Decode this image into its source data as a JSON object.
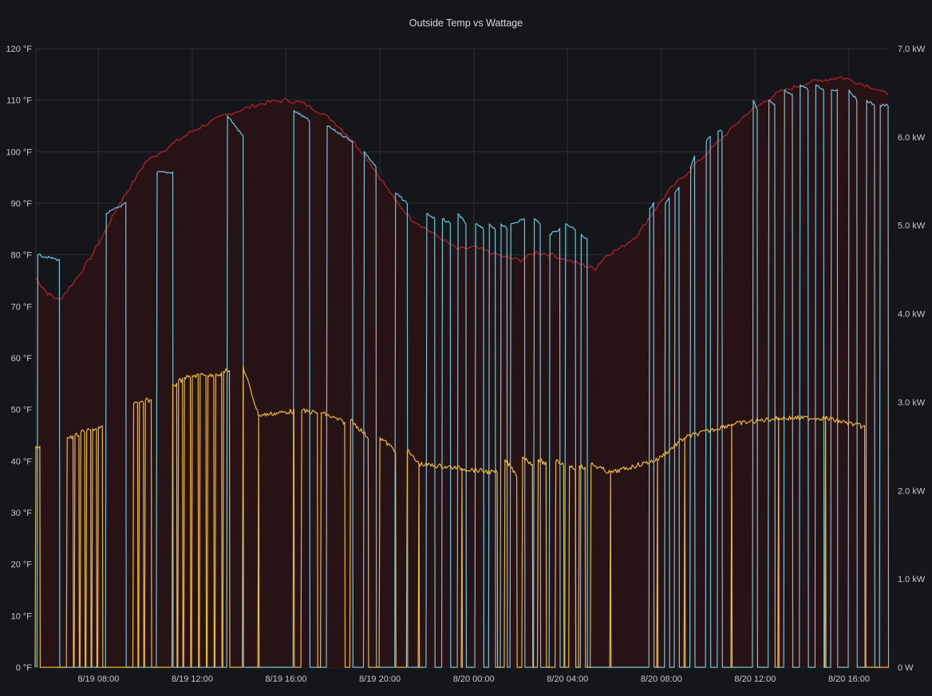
{
  "panel": {
    "title": "Outside Temp vs Wattage"
  },
  "chart_data": {
    "type": "line",
    "title": "Outside Temp vs Wattage",
    "x_ticks": [
      "8/19 08:00",
      "8/19 12:00",
      "8/19 16:00",
      "8/19 20:00",
      "8/20 00:00",
      "8/20 04:00",
      "8/20 08:00",
      "8/20 12:00",
      "8/20 16:00"
    ],
    "x_range": [
      "8/19 05:20",
      "8/20 17:40"
    ],
    "y_left": {
      "unit": "°F",
      "ylim": [
        0,
        120
      ],
      "ticks": [
        "0 °F",
        "10 °F",
        "20 °F",
        "30 °F",
        "40 °F",
        "50 °F",
        "60 °F",
        "70 °F",
        "80 °F",
        "90 °F",
        "100 °F",
        "110 °F",
        "120 °F"
      ]
    },
    "y_right": {
      "unit": "kW",
      "ylim": [
        0,
        7
      ],
      "ticks": [
        "0 W",
        "1.0 kW",
        "2.0 kW",
        "3.0 kW",
        "4.0 kW",
        "5.0 kW",
        "6.0 kW",
        "7.0 kW"
      ]
    },
    "grid": true,
    "colors": {
      "temperature": "#a8202e",
      "temperature_fill": "#2a1215",
      "power_high": "#6ec6dc",
      "power_low": "#eab839"
    },
    "temperature_series": {
      "axis": "left",
      "points": [
        [
          "8/19 05:20",
          75.5
        ],
        [
          "8/19 05:50",
          72.5
        ],
        [
          "8/19 06:20",
          71.2
        ],
        [
          "8/19 07:00",
          75
        ],
        [
          "8/19 07:40",
          79.5
        ],
        [
          "8/19 08:20",
          85
        ],
        [
          "8/19 08:50",
          89.5
        ],
        [
          "8/19 09:20",
          93
        ],
        [
          "8/19 10:00",
          98
        ],
        [
          "8/19 10:40",
          100
        ],
        [
          "8/19 11:20",
          102
        ],
        [
          "8/19 12:00",
          104
        ],
        [
          "8/19 12:40",
          105.5
        ],
        [
          "8/19 13:20",
          107
        ],
        [
          "8/19 14:00",
          108
        ],
        [
          "8/19 14:40",
          109
        ],
        [
          "8/19 15:20",
          109.7
        ],
        [
          "8/19 16:00",
          110
        ],
        [
          "8/19 16:40",
          109.5
        ],
        [
          "8/19 17:20",
          108
        ],
        [
          "8/19 18:00",
          106
        ],
        [
          "8/19 18:40",
          103
        ],
        [
          "8/19 19:20",
          99.5
        ],
        [
          "8/19 20:00",
          95
        ],
        [
          "8/19 20:40",
          90.5
        ],
        [
          "8/19 21:20",
          87
        ],
        [
          "8/19 22:00",
          85
        ],
        [
          "8/19 22:40",
          83
        ],
        [
          "8/19 23:20",
          81
        ],
        [
          "8/20 00:00",
          81.5
        ],
        [
          "8/20 00:40",
          80.5
        ],
        [
          "8/20 01:20",
          79.5
        ],
        [
          "8/20 02:00",
          79
        ],
        [
          "8/20 02:40",
          80.5
        ],
        [
          "8/20 03:20",
          80
        ],
        [
          "8/20 04:00",
          79
        ],
        [
          "8/20 04:40",
          78
        ],
        [
          "8/20 05:10",
          77.3
        ],
        [
          "8/20 05:40",
          80
        ],
        [
          "8/20 06:20",
          81.5
        ],
        [
          "8/20 07:00",
          84
        ],
        [
          "8/20 07:40",
          88.5
        ],
        [
          "8/20 08:20",
          92.5
        ],
        [
          "8/20 09:00",
          95.5
        ],
        [
          "8/20 09:40",
          98.5
        ],
        [
          "8/20 10:20",
          101.5
        ],
        [
          "8/20 11:00",
          104.5
        ],
        [
          "8/20 11:40",
          107.5
        ],
        [
          "8/20 12:20",
          109.5
        ],
        [
          "8/20 13:00",
          111.5
        ],
        [
          "8/20 13:40",
          112.5
        ],
        [
          "8/20 14:20",
          113.5
        ],
        [
          "8/20 15:00",
          114
        ],
        [
          "8/20 15:40",
          114.5
        ],
        [
          "8/20 16:20",
          113.5
        ],
        [
          "8/20 17:00",
          112.5
        ],
        [
          "8/20 17:40",
          111
        ]
      ]
    },
    "cooling_power_series": {
      "axis": "left",
      "description_unit": "°F-equivalent level shown by cyan line",
      "cycles": [
        [
          "8/19 05:25",
          "8/19 06:20",
          80,
          79
        ],
        [
          "8/19 08:20",
          "8/19 09:10",
          88,
          90
        ],
        [
          "8/19 10:30",
          "8/19 11:10",
          96,
          96
        ],
        [
          "8/19 13:30",
          "8/19 14:10",
          107,
          103
        ],
        [
          "8/19 16:20",
          "8/19 17:00",
          108,
          106
        ],
        [
          "8/19 17:45",
          "8/19 18:50",
          105,
          102
        ],
        [
          "8/19 19:20",
          "8/19 19:50",
          100,
          97
        ],
        [
          "8/19 20:40",
          "8/19 21:10",
          92,
          90
        ],
        [
          "8/19 22:00",
          "8/19 22:20",
          88,
          87
        ],
        [
          "8/19 22:40",
          "8/19 23:00",
          87,
          86
        ],
        [
          "8/19 23:20",
          "8/19 23:40",
          88,
          86
        ],
        [
          "8/20 00:05",
          "8/20 00:25",
          86,
          85
        ],
        [
          "8/20 00:40",
          "8/20 00:55",
          86,
          85
        ],
        [
          "8/20 01:10",
          "8/20 01:25",
          86,
          85
        ],
        [
          "8/20 01:35",
          "8/20 02:10",
          86,
          87
        ],
        [
          "8/20 02:35",
          "8/20 02:50",
          87,
          86
        ],
        [
          "8/20 03:15",
          "8/20 03:40",
          84,
          85
        ],
        [
          "8/20 03:55",
          "8/20 04:20",
          86,
          85
        ],
        [
          "8/20 04:35",
          "8/20 04:50",
          84,
          83
        ],
        [
          "8/20 07:30",
          "8/20 07:40",
          89,
          90
        ],
        [
          "8/20 08:10",
          "8/20 08:20",
          90,
          91
        ],
        [
          "8/20 08:35",
          "8/20 08:45",
          92,
          93
        ],
        [
          "8/20 09:15",
          "8/20 09:25",
          97,
          99
        ],
        [
          "8/20 09:55",
          "8/20 10:05",
          102,
          103
        ],
        [
          "8/20 10:25",
          "8/20 10:35",
          104,
          104
        ],
        [
          "8/20 11:55",
          "8/20 12:05",
          110,
          108
        ],
        [
          "8/20 12:35",
          "8/20 12:50",
          110,
          109
        ],
        [
          "8/20 13:15",
          "8/20 13:35",
          112,
          111
        ],
        [
          "8/20 13:55",
          "8/20 14:15",
          113,
          112
        ],
        [
          "8/20 14:35",
          "8/20 14:55",
          113,
          112
        ],
        [
          "8/20 15:15",
          "8/20 15:30",
          112,
          112
        ],
        [
          "8/20 16:00",
          "8/20 16:20",
          112,
          110
        ],
        [
          "8/20 16:45",
          "8/20 17:05",
          110,
          109
        ],
        [
          "8/20 17:20",
          "8/20 17:40",
          109,
          109
        ]
      ]
    },
    "wattage_series": {
      "axis": "right",
      "unit": "kW",
      "cycles": [
        [
          "8/19 05:20",
          "8/19 05:30",
          2.5,
          2.5
        ],
        [
          "8/19 06:40",
          "8/19 06:55",
          2.6,
          2.6
        ],
        [
          "8/19 07:00",
          "8/19 07:10",
          2.63,
          2.63
        ],
        [
          "8/19 07:15",
          "8/19 07:25",
          2.66,
          2.66
        ],
        [
          "8/19 07:30",
          "8/19 07:40",
          2.68,
          2.68
        ],
        [
          "8/19 07:45",
          "8/19 07:55",
          2.7,
          2.7
        ],
        [
          "8/19 08:00",
          "8/19 08:10",
          2.72,
          2.72
        ],
        [
          "8/19 09:30",
          "8/19 09:40",
          2.98,
          2.98
        ],
        [
          "8/19 09:45",
          "8/19 09:55",
          3.0,
          3.0
        ],
        [
          "8/19 10:00",
          "8/19 10:15",
          3.02,
          3.02
        ],
        [
          "8/19 11:10",
          "8/19 11:20",
          3.2,
          3.2
        ],
        [
          "8/19 11:25",
          "8/19 11:35",
          3.25,
          3.25
        ],
        [
          "8/19 11:40",
          "8/19 11:55",
          3.28,
          3.28
        ],
        [
          "8/19 12:00",
          "8/19 12:15",
          3.3,
          3.3
        ],
        [
          "8/19 12:20",
          "8/19 12:35",
          3.32,
          3.32
        ],
        [
          "8/19 12:40",
          "8/19 12:55",
          3.3,
          3.3
        ],
        [
          "8/19 13:00",
          "8/19 13:15",
          3.32,
          3.32
        ],
        [
          "8/19 13:20",
          "8/19 13:35",
          3.35,
          3.35
        ],
        [
          "8/19 14:10",
          "8/19 14:50",
          3.4,
          2.85
        ],
        [
          "8/19 14:50",
          "8/19 16:20",
          2.85,
          2.9
        ],
        [
          "8/19 16:40",
          "8/19 17:20",
          2.9,
          2.88
        ],
        [
          "8/19 17:30",
          "8/19 18:30",
          2.88,
          2.77
        ],
        [
          "8/19 18:45",
          "8/19 19:30",
          2.8,
          2.6
        ],
        [
          "8/19 20:00",
          "8/19 20:40",
          2.6,
          2.45
        ],
        [
          "8/19 21:10",
          "8/19 21:40",
          2.45,
          2.3
        ],
        [
          "8/19 21:40",
          "8/19 23:30",
          2.3,
          2.25
        ],
        [
          "8/19 23:30",
          "8/20 01:00",
          2.25,
          2.2
        ],
        [
          "8/20 01:20",
          "8/20 01:50",
          2.35,
          2.18
        ],
        [
          "8/20 02:05",
          "8/20 02:30",
          2.38,
          2.3
        ],
        [
          "8/20 02:45",
          "8/20 03:05",
          2.35,
          2.3
        ],
        [
          "8/20 03:30",
          "8/20 03:50",
          2.33,
          2.3
        ],
        [
          "8/20 04:05",
          "8/20 04:20",
          2.28,
          2.25
        ],
        [
          "8/20 04:30",
          "8/20 04:45",
          2.28,
          2.25
        ],
        [
          "8/20 05:00",
          "8/20 05:50",
          2.3,
          2.2
        ],
        [
          "8/20 05:50",
          "8/20 07:50",
          2.2,
          2.35
        ],
        [
          "8/20 07:50",
          "8/20 09:00",
          2.35,
          2.6
        ],
        [
          "8/20 09:00",
          "8/20 11:00",
          2.6,
          2.75
        ],
        [
          "8/20 11:00",
          "8/20 13:00",
          2.75,
          2.82
        ],
        [
          "8/20 13:00",
          "8/20 15:00",
          2.82,
          2.82
        ],
        [
          "8/20 15:00",
          "8/20 16:40",
          2.82,
          2.72
        ]
      ]
    }
  }
}
